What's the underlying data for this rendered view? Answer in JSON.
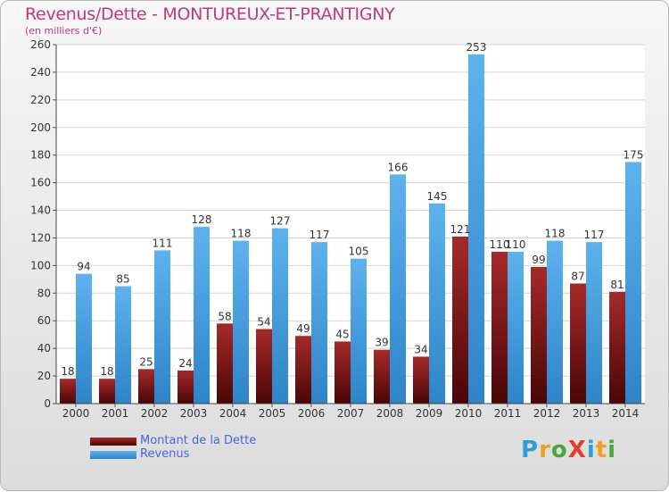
{
  "header": {
    "title": "Revenus/Dette - MONTUREUX-ET-PRANTIGNY",
    "subtitle": "(en milliers d'€)"
  },
  "chart_data": {
    "type": "bar",
    "title": "Revenus/Dette - MONTUREUX-ET-PRANTIGNY",
    "subtitle": "(en milliers d'€)",
    "xlabel": "",
    "ylabel": "",
    "ylim": [
      0,
      260
    ],
    "yticks": [
      0,
      20,
      40,
      60,
      80,
      100,
      120,
      140,
      160,
      180,
      200,
      220,
      240,
      260
    ],
    "grid": true,
    "legend_position": "bottom-left",
    "categories": [
      "2000",
      "2001",
      "2002",
      "2003",
      "2004",
      "2005",
      "2006",
      "2007",
      "2008",
      "2009",
      "2010",
      "2011",
      "2012",
      "2013",
      "2014"
    ],
    "series": [
      {
        "name": "Montant de la Dette",
        "color": "#7a1414",
        "values": [
          18,
          18,
          25,
          24,
          58,
          54,
          49,
          45,
          39,
          34,
          121,
          110,
          99,
          87,
          81
        ]
      },
      {
        "name": "Revenus",
        "color": "#3b96db",
        "values": [
          94,
          85,
          111,
          128,
          118,
          127,
          117,
          105,
          166,
          145,
          253,
          110,
          118,
          117,
          175
        ]
      }
    ]
  },
  "brand": {
    "text": "ProXiti"
  }
}
